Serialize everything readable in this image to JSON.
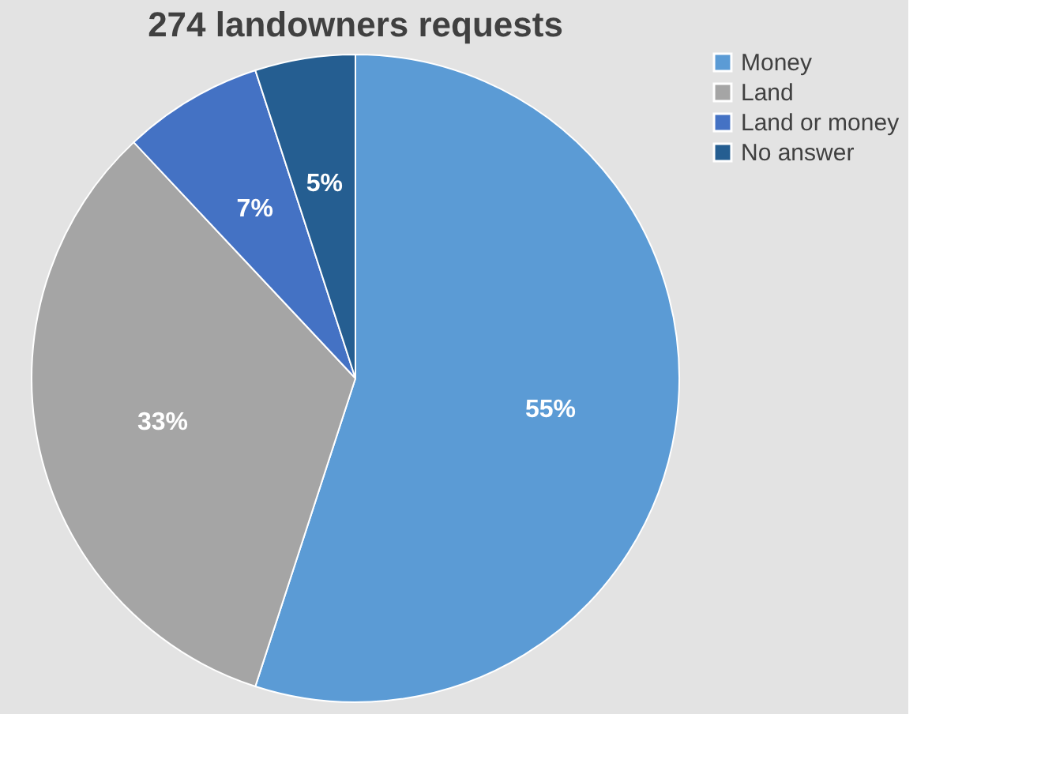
{
  "chart_data": {
    "type": "pie",
    "title": "274 landowners requests",
    "categories": [
      "Money",
      "Land",
      "Land or money",
      "No answer"
    ],
    "values": [
      55,
      33,
      7,
      5
    ],
    "colors": [
      "#5b9bd5",
      "#a5a5a5",
      "#4472c4",
      "#255e91"
    ],
    "value_labels": [
      "55%",
      "33%",
      "7%",
      "5%"
    ],
    "legend": "top right"
  }
}
